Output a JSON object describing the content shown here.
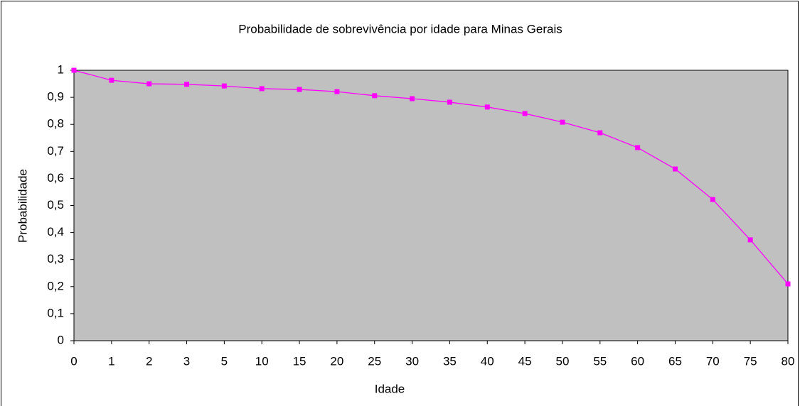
{
  "chart_data": {
    "type": "line",
    "title": "Probabilidade de sobrevivência por idade para Minas Gerais",
    "x_label": "Idade",
    "y_label": "Probabilidade",
    "categories": [
      "0",
      "1",
      "2",
      "3",
      "5",
      "10",
      "15",
      "20",
      "25",
      "30",
      "35",
      "40",
      "45",
      "50",
      "55",
      "60",
      "65",
      "70",
      "75",
      "80"
    ],
    "series": [
      {
        "name": "Probabilidade",
        "color": "#ff00ff",
        "values": [
          1,
          0.963,
          0.95,
          0.948,
          0.942,
          0.932,
          0.929,
          0.921,
          0.906,
          0.895,
          0.882,
          0.864,
          0.84,
          0.808,
          0.769,
          0.714,
          0.635,
          0.522,
          0.373,
          0.21
        ]
      }
    ],
    "ylim": [
      0,
      1
    ],
    "yticks": [
      0,
      {
        "value": 0.1,
        "label": "0,1"
      },
      {
        "value": 0.2,
        "label": "0,2"
      },
      {
        "value": 0.3,
        "label": "0,3"
      },
      {
        "value": 0.4,
        "label": "0,4"
      },
      {
        "value": 0.5,
        "label": "0,5"
      },
      {
        "value": 0.6,
        "label": "0,6"
      },
      {
        "value": 0.7,
        "label": "0,7"
      },
      {
        "value": 0.8,
        "label": "0,8"
      },
      {
        "value": 0.9,
        "label": "0,9"
      },
      1
    ],
    "plot_background": "#c0c0c0",
    "grid": false
  }
}
